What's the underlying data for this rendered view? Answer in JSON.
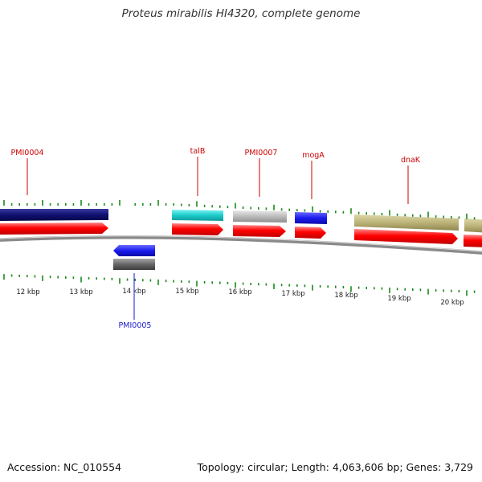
{
  "title": "Proteus mirabilis HI4320, complete genome",
  "footer": {
    "accession": "Accession: NC_010554",
    "summary": "Topology: circular; Length: 4,063,606 bp; Genes: 3,729"
  },
  "colors": {
    "cds": "#ff0000",
    "tick": "#1a8a1a",
    "label_forward": "#cc0000",
    "label_reverse": "#1a1acc",
    "backbone": "#888888",
    "gene_navy": "#101070",
    "gene_cyan": "#1ccccc",
    "gene_gray": "#bbbbbb",
    "gene_blue": "#1a1aee",
    "gene_khaki": "#bdb47a",
    "gene_dark_gray": "#666666"
  },
  "scale": {
    "unit": "kbp",
    "labels": [
      "12 kbp",
      "13 kbp",
      "14 kbp",
      "15 kbp",
      "16 kbp",
      "17 kbp",
      "18 kbp",
      "19 kbp",
      "20 kbp"
    ]
  },
  "genes": [
    {
      "name": "PMI0004",
      "strand": "forward",
      "color": "navy",
      "labeled": true
    },
    {
      "name": "PMI0005",
      "strand": "reverse",
      "color": "blue",
      "labeled": true
    },
    {
      "name": "talB",
      "strand": "forward",
      "color": "cyan",
      "labeled": true
    },
    {
      "name": "PMI0007",
      "strand": "forward",
      "color": "gray",
      "labeled": true
    },
    {
      "name": "mogA",
      "strand": "forward",
      "color": "blue",
      "labeled": true
    },
    {
      "name": "dnaK",
      "strand": "forward",
      "color": "khaki",
      "labeled": true
    },
    {
      "name": "",
      "strand": "forward",
      "color": "khaki",
      "labeled": false
    }
  ]
}
